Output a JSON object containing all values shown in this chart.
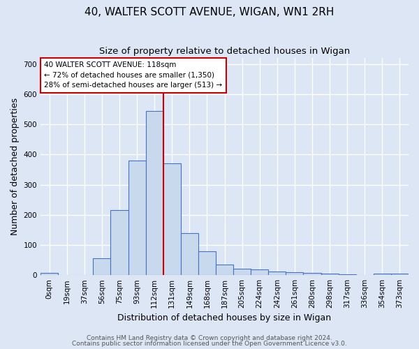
{
  "title": "40, WALTER SCOTT AVENUE, WIGAN, WN1 2RH",
  "subtitle": "Size of property relative to detached houses in Wigan",
  "xlabel": "Distribution of detached houses by size in Wigan",
  "ylabel": "Number of detached properties",
  "footer_line1": "Contains HM Land Registry data © Crown copyright and database right 2024.",
  "footer_line2": "Contains public sector information licensed under the Open Government Licence v3.0.",
  "annotation_line1": "40 WALTER SCOTT AVENUE: 118sqm",
  "annotation_line2": "← 72% of detached houses are smaller (1,350)",
  "annotation_line3": "28% of semi-detached houses are larger (513) →",
  "bin_labels": [
    "0sqm",
    "19sqm",
    "37sqm",
    "56sqm",
    "75sqm",
    "93sqm",
    "112sqm",
    "131sqm",
    "149sqm",
    "168sqm",
    "187sqm",
    "205sqm",
    "224sqm",
    "242sqm",
    "261sqm",
    "280sqm",
    "298sqm",
    "317sqm",
    "336sqm",
    "354sqm",
    "373sqm"
  ],
  "bar_heights": [
    7,
    0,
    0,
    55,
    215,
    380,
    545,
    370,
    140,
    78,
    35,
    22,
    18,
    12,
    10,
    7,
    5,
    3,
    0,
    5,
    5
  ],
  "bar_color": "#c9d9ed",
  "bar_edge_color": "#4472c4",
  "red_line_x": 6.5,
  "red_line_color": "#cc0000",
  "ylim": [
    0,
    720
  ],
  "yticks": [
    0,
    100,
    200,
    300,
    400,
    500,
    600,
    700
  ],
  "bg_color": "#dce6f5",
  "plot_bg_color": "#dce6f5",
  "grid_color": "#ffffff",
  "title_fontsize": 11,
  "subtitle_fontsize": 9.5,
  "axis_label_fontsize": 9,
  "tick_fontsize": 7.5,
  "annotation_fontsize": 7.5,
  "footer_fontsize": 6.5
}
